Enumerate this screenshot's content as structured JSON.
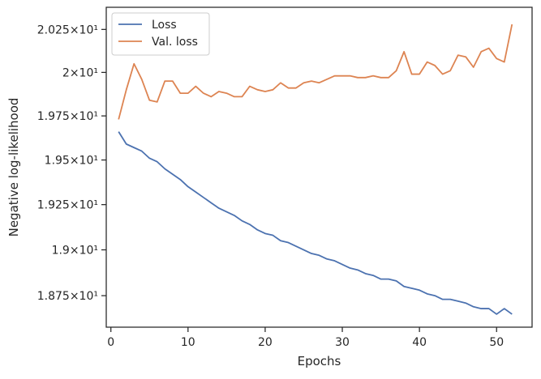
{
  "chart_data": {
    "type": "line",
    "title": "",
    "xlabel": "Epochs",
    "ylabel": "Negative log-likelihood",
    "xlim": [
      -0.6,
      54.6
    ],
    "ylim": [
      18.58,
      20.38
    ],
    "y_scale": "log",
    "x_ticks": [
      0,
      10,
      20,
      30,
      40,
      50
    ],
    "y_ticks": [
      {
        "value": 18.75,
        "label": "1.875×10¹"
      },
      {
        "value": 19.0,
        "label": "1.9×10¹"
      },
      {
        "value": 19.25,
        "label": "1.925×10¹"
      },
      {
        "value": 19.5,
        "label": "1.95×10¹"
      },
      {
        "value": 19.75,
        "label": "1.975×10¹"
      },
      {
        "value": 20.0,
        "label": "2×10¹"
      },
      {
        "value": 20.25,
        "label": "2.025×10¹"
      }
    ],
    "grid": false,
    "legend_position": "top-left",
    "x": [
      1,
      2,
      3,
      4,
      5,
      6,
      7,
      8,
      9,
      10,
      11,
      12,
      13,
      14,
      15,
      16,
      17,
      18,
      19,
      20,
      21,
      22,
      23,
      24,
      25,
      26,
      27,
      28,
      29,
      30,
      31,
      32,
      33,
      34,
      35,
      36,
      37,
      38,
      39,
      40,
      41,
      42,
      43,
      44,
      45,
      46,
      47,
      48,
      49,
      50,
      51,
      52
    ],
    "series": [
      {
        "name": "Loss",
        "color": "#4c72b0",
        "values": [
          19.66,
          19.59,
          19.57,
          19.55,
          19.51,
          19.49,
          19.45,
          19.42,
          19.39,
          19.35,
          19.32,
          19.29,
          19.26,
          19.23,
          19.21,
          19.19,
          19.16,
          19.14,
          19.11,
          19.09,
          19.08,
          19.05,
          19.04,
          19.02,
          19.0,
          18.98,
          18.97,
          18.95,
          18.94,
          18.92,
          18.9,
          18.89,
          18.87,
          18.86,
          18.84,
          18.84,
          18.83,
          18.8,
          18.79,
          18.78,
          18.76,
          18.75,
          18.73,
          18.73,
          18.72,
          18.71,
          18.69,
          18.68,
          18.68,
          18.65,
          18.68,
          18.65
        ]
      },
      {
        "name": "Val. loss",
        "color": "#dd8452",
        "values": [
          19.73,
          19.9,
          20.05,
          19.96,
          19.84,
          19.83,
          19.95,
          19.95,
          19.88,
          19.88,
          19.92,
          19.88,
          19.86,
          19.89,
          19.88,
          19.86,
          19.86,
          19.92,
          19.9,
          19.89,
          19.9,
          19.94,
          19.91,
          19.91,
          19.94,
          19.95,
          19.94,
          19.96,
          19.98,
          19.98,
          19.98,
          19.97,
          19.97,
          19.98,
          19.97,
          19.97,
          20.01,
          20.12,
          19.99,
          19.99,
          20.06,
          20.04,
          19.99,
          20.01,
          20.1,
          20.09,
          20.03,
          20.12,
          20.14,
          20.08,
          20.06,
          20.28
        ]
      }
    ]
  }
}
